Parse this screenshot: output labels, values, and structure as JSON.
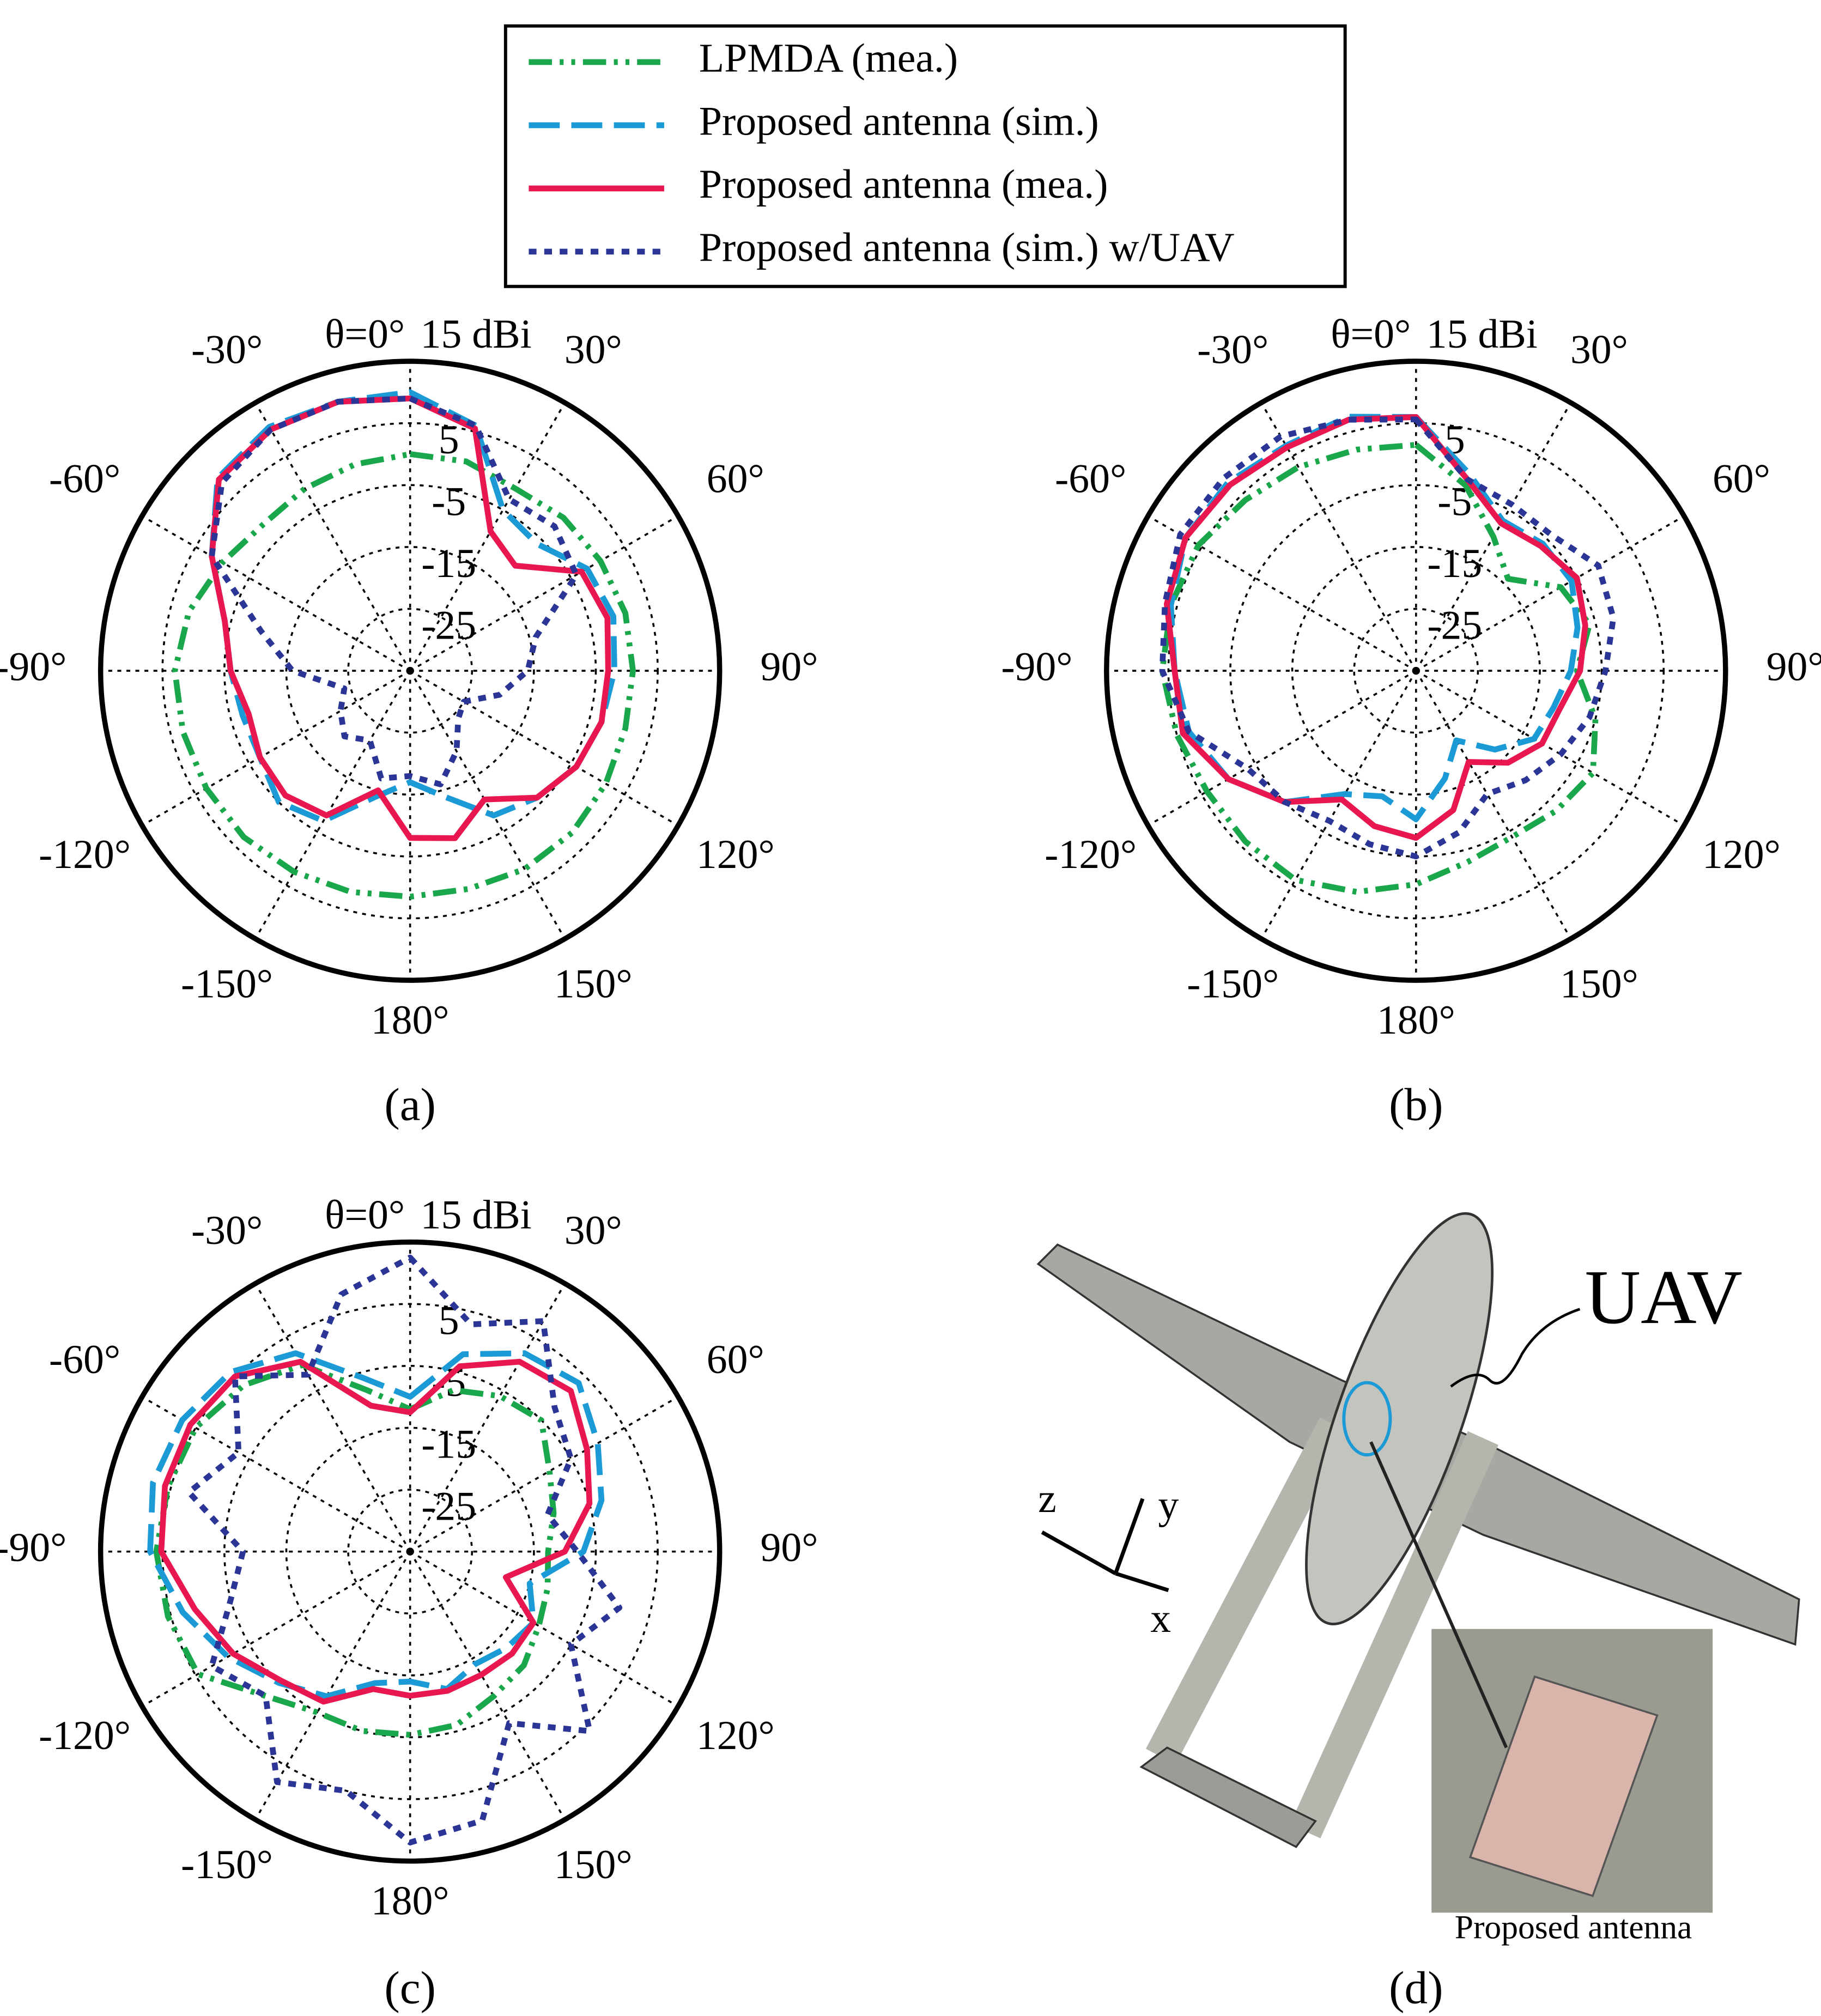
{
  "chart_data": [
    {
      "type": "polar",
      "caption": "(a)",
      "x": [
        0,
        15,
        30,
        45,
        60,
        75,
        90,
        105,
        120,
        135,
        150,
        165,
        180,
        195,
        210,
        225,
        240,
        255,
        270,
        285,
        300,
        315,
        330,
        345
      ],
      "rlim": [
        -35,
        15
      ],
      "rticks": [
        {
          "value": 15,
          "label": "15 dBi"
        },
        5,
        -5,
        -15,
        -25
      ],
      "thetaticks": [
        {
          "value": 0,
          "label": "θ=0°"
        },
        {
          "value": 30,
          "label": "30°"
        },
        {
          "value": 60,
          "label": "60°"
        },
        {
          "value": 90,
          "label": "90°"
        },
        {
          "value": 120,
          "label": "120°"
        },
        {
          "value": 150,
          "label": "150°"
        },
        {
          "value": 180,
          "label": "180°"
        },
        {
          "value": -150,
          "label": "-150°"
        },
        {
          "value": -120,
          "label": "-120°"
        },
        {
          "value": -90,
          "label": "-90°"
        },
        {
          "value": -60,
          "label": "-60°"
        },
        {
          "value": -30,
          "label": "-30°"
        }
      ],
      "series": [
        {
          "name": "LPMDA (mea.)",
          "color": "#1aa64a",
          "values": [
            0,
            0,
            -1,
            0,
            0.5,
            1,
            1,
            1,
            1.5,
            2,
            2,
            1.5,
            1.5,
            2,
            2.5,
            3,
            3,
            3,
            3,
            2,
            0,
            -1.5,
            -1,
            -0.5
          ]
        },
        {
          "name": "Proposed antenna (sim.)",
          "color": "#1b9ad6",
          "values": [
            10,
            6,
            -5,
            -6,
            -2,
            -1,
            -2,
            -3,
            -4,
            -6,
            -8,
            -14,
            -17,
            -14,
            -7,
            -5,
            -7,
            -7,
            -6,
            -4,
            2,
            9,
            10.5,
            10
          ]
        },
        {
          "name": "Proposed antenna (mea.)",
          "color": "#e8174f",
          "values": [
            9,
            5.5,
            -9,
            -11,
            -3,
            -2,
            -3,
            -3,
            -4,
            -6,
            -11,
            -7,
            -8,
            -15,
            -8,
            -6.5,
            -7,
            -8,
            -6,
            -4,
            2,
            8.7,
            10,
            10
          ]
        },
        {
          "name": "Proposed antenna (sim.) w/UAV",
          "color": "#2b3595",
          "values": [
            9,
            6,
            -3,
            -2,
            -4,
            -14,
            -16,
            -20,
            -25,
            -24,
            -20,
            -16,
            -18,
            -17,
            -22,
            -20,
            -22,
            -24,
            -16,
            -10,
            2,
            8,
            10,
            10
          ]
        }
      ]
    },
    {
      "type": "polar",
      "caption": "(b)",
      "x": [
        0,
        15,
        30,
        45,
        60,
        75,
        90,
        105,
        120,
        135,
        150,
        165,
        180,
        195,
        210,
        225,
        240,
        255,
        270,
        285,
        300,
        315,
        330,
        345
      ],
      "rlim": [
        -35,
        15
      ],
      "rticks": [
        {
          "value": 15,
          "label": "15 dBi"
        },
        5,
        -5,
        -15,
        -25
      ],
      "thetaticks": [
        {
          "value": 0,
          "label": "θ=0°"
        },
        {
          "value": 30,
          "label": "30°"
        },
        {
          "value": 60,
          "label": "60°"
        },
        {
          "value": 90,
          "label": "90°"
        },
        {
          "value": 120,
          "label": "120°"
        },
        {
          "value": 150,
          "label": "150°"
        },
        {
          "value": 180,
          "label": "180°"
        },
        {
          "value": -150,
          "label": "-150°"
        },
        {
          "value": -120,
          "label": "-120°"
        },
        {
          "value": -90,
          "label": "-90°"
        },
        {
          "value": -60,
          "label": "-60°"
        },
        {
          "value": -30,
          "label": "-30°"
        }
      ],
      "series": [
        {
          "color": "#1aa64a",
          "values": [
            1.5,
            -4,
            -10,
            -14,
            -8,
            -6,
            -9,
            -5,
            -2,
            -3,
            -4,
            -3,
            -0.5,
            2,
            4,
            4,
            4,
            5,
            6,
            6,
            5.6,
            4,
            3,
            2
          ]
        },
        {
          "color": "#1b9ad6",
          "values": [
            6,
            -2,
            -7,
            -6,
            -6,
            -8,
            -10,
            -12,
            -13,
            -17,
            -22,
            -17,
            -11,
            -14,
            -12,
            -5,
            0,
            3,
            4,
            6,
            8,
            8,
            7,
            7.5
          ]
        },
        {
          "color": "#e8174f",
          "values": [
            6,
            -3,
            -7.5,
            -6.5,
            -5,
            -6.7,
            -8.5,
            -11,
            -11.5,
            -14,
            -18,
            -11.7,
            -8,
            -9,
            -11,
            -5,
            0,
            4,
            4,
            6.7,
            8,
            7.5,
            6.7,
            7
          ]
        },
        {
          "color": "#2b3595",
          "values": [
            5.6,
            -3,
            -4,
            -4,
            -1,
            -2,
            -4.4,
            -6,
            -8,
            -10,
            -12,
            -8,
            -5,
            -6,
            -7,
            -5,
            -3.5,
            3,
            6,
            7,
            9,
            9,
            8.7,
            7
          ]
        }
      ]
    },
    {
      "type": "polar",
      "caption": "(c)",
      "x": [
        0,
        15,
        30,
        45,
        60,
        75,
        90,
        105,
        120,
        135,
        150,
        165,
        180,
        195,
        210,
        225,
        240,
        255,
        270,
        285,
        300,
        315,
        330,
        345
      ],
      "rlim": [
        -35,
        15
      ],
      "rticks": [
        {
          "value": 15,
          "label": "15 dBi"
        },
        5,
        -5,
        -15,
        -25
      ],
      "thetaticks": [
        {
          "value": 0,
          "label": "θ=0°"
        },
        {
          "value": 30,
          "label": "30°"
        },
        {
          "value": 60,
          "label": "60°"
        },
        {
          "value": 90,
          "label": "90°"
        },
        {
          "value": 120,
          "label": "120°"
        },
        {
          "value": 150,
          "label": "150°"
        },
        {
          "value": 180,
          "label": "180°"
        },
        {
          "value": -150,
          "label": "-150°"
        },
        {
          "value": -120,
          "label": "-120°"
        },
        {
          "value": -90,
          "label": "-90°"
        },
        {
          "value": -60,
          "label": "-60°"
        },
        {
          "value": -30,
          "label": "-30°"
        }
      ],
      "series": [
        {
          "color": "#1aa64a",
          "values": [
            -12,
            -8,
            -6,
            -5,
            -9,
            -11,
            -12.7,
            -12,
            -11,
            -9,
            -8,
            -6,
            -5.4,
            -5,
            -5,
            -2,
            4.6,
            5.5,
            6,
            5.5,
            5,
            3,
            -0.2,
            -8
          ]
        },
        {
          "color": "#1b9ad6",
          "values": [
            -10,
            -2,
            2,
            3.5,
            0,
            -3,
            -7,
            -15,
            -12,
            -13,
            -14,
            -12,
            -14,
            -13,
            -8,
            -5,
            -1,
            3,
            7,
            8,
            7.5,
            6,
            2,
            -6
          ]
        },
        {
          "color": "#e8174f",
          "values": [
            -12.5,
            -4,
            0.4,
            1.7,
            -2,
            -5,
            -10,
            -19,
            -12,
            -11.7,
            -12,
            -11.7,
            -11.7,
            -12,
            -7,
            -5.5,
            -2,
            1,
            5.2,
            6,
            6,
            5,
            0.4,
            -10.6
          ]
        },
        {
          "color": "#2b3595",
          "values": [
            12.5,
            3,
            8,
            -2,
            -5,
            -12,
            -8,
            0,
            -5,
            6,
            -3,
            10,
            12,
            5,
            8,
            -2,
            2,
            -5,
            -8,
            2,
            -3,
            5,
            -2,
            8
          ]
        }
      ]
    }
  ],
  "figure_d": {
    "caption": "(d)",
    "uav_label": "UAV",
    "axis_z": "z",
    "axis_y": "y",
    "axis_x": "x",
    "inset_label": "Proposed antenna"
  }
}
